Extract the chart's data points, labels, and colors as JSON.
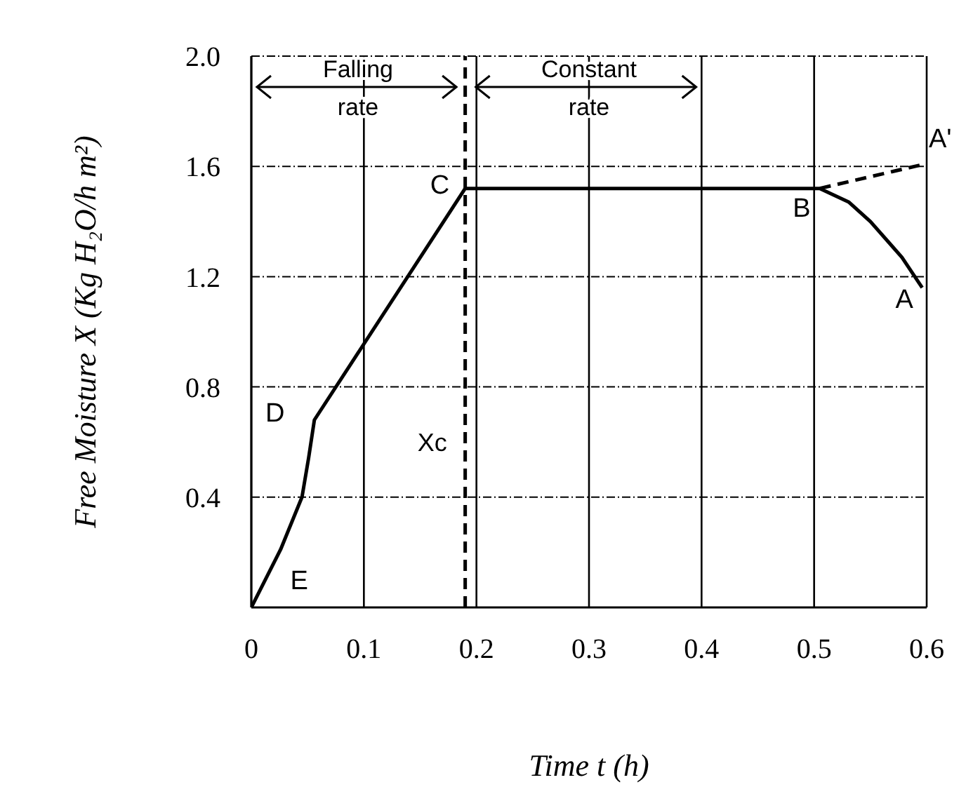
{
  "chart_data": {
    "type": "line",
    "xlabel": "Time t (h)",
    "ylabel": "Free Moisture X (Kg H₂O/h m²)",
    "xlim": [
      0,
      0.6
    ],
    "xticks": [
      0,
      0.1,
      0.2,
      0.3,
      0.4,
      0.5,
      0.6
    ],
    "ylim": [
      0,
      2.0
    ],
    "yticks": [
      {
        "value": 0.4,
        "label": "0.4"
      },
      {
        "value": 0.8,
        "label": "0.8"
      },
      {
        "value": 1.2,
        "label": "1.2"
      },
      {
        "value": 1.6,
        "label": "1.6"
      },
      {
        "value": 2.0,
        "label": "2.0"
      }
    ],
    "grid": true,
    "marker": "none",
    "series": [
      {
        "color": "#000000",
        "line_style": "solid",
        "x": [
          0,
          0.026,
          0.045,
          0.051,
          0.056,
          0.19,
          0.505,
          0.531,
          0.55,
          0.578,
          0.596
        ],
        "values": [
          0,
          0.21,
          0.4,
          0.545,
          0.68,
          1.52,
          1.52,
          1.47,
          1.4,
          1.27,
          1.16
        ]
      },
      {
        "color": "#000000",
        "line_style": "dashed",
        "x": [
          0.505,
          0.6
        ],
        "values": [
          1.52,
          1.61
        ]
      }
    ],
    "ref_lines": [
      {
        "axis": "x",
        "value": 0.19,
        "label": "Xc",
        "color": "#000000",
        "line_style": "dashed"
      }
    ],
    "annotations": [
      "Falling rate",
      "Constant rate",
      "A'",
      "B",
      "A",
      "C",
      "D",
      "E"
    ]
  }
}
